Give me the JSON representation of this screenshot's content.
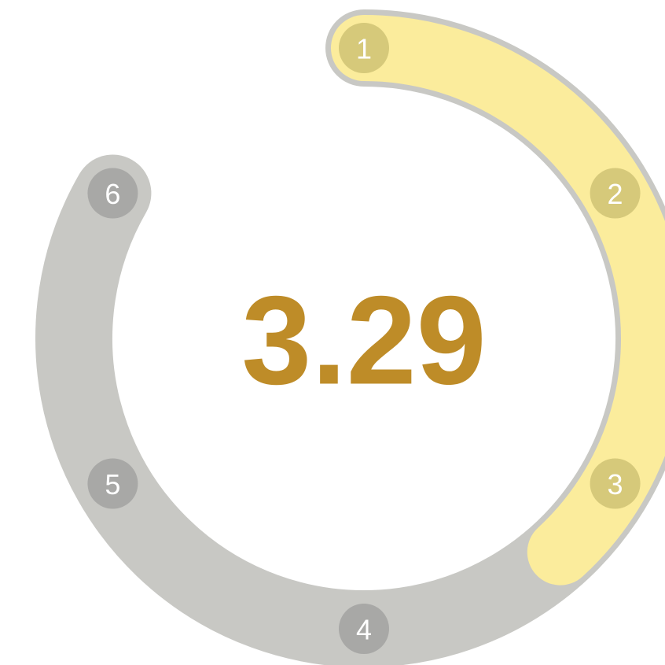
{
  "chart_data": {
    "type": "gauge",
    "value": 3.29,
    "range": [
      1,
      6
    ],
    "ticks": [
      1,
      2,
      3,
      4,
      5,
      6
    ],
    "track_color": "#c8c8c4",
    "fill_color": "#fbec9c",
    "tick_color": "#a8a8a6",
    "tick_fill_color": "#d6c97a",
    "value_color": "#be8c28"
  }
}
